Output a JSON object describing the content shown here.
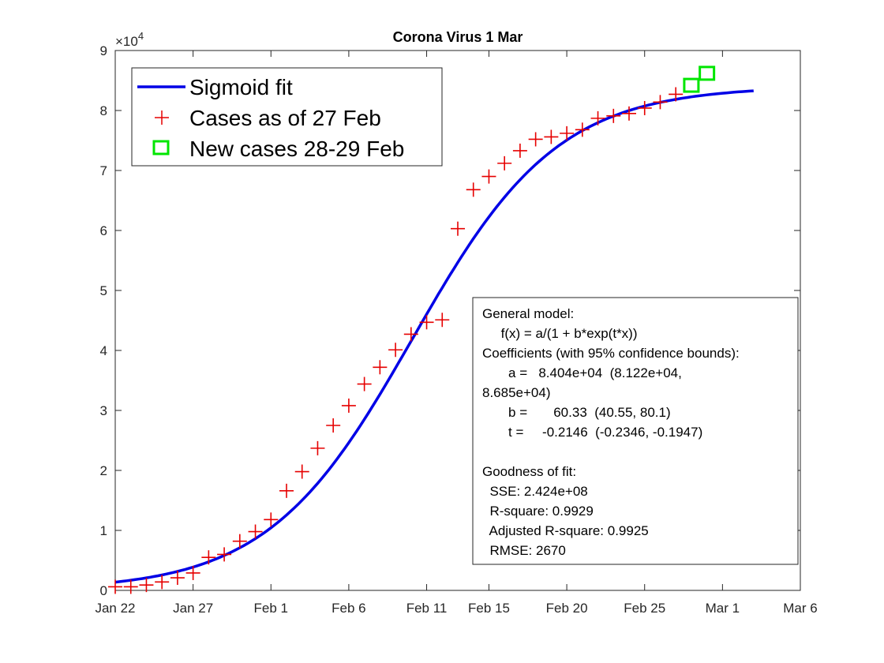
{
  "chart_data": {
    "type": "line",
    "title": "Corona Virus 1 Mar",
    "xlabel": "",
    "ylabel": "",
    "y_exponent_label": "×10",
    "y_exponent_power": "4",
    "xlim": [
      0,
      44
    ],
    "ylim": [
      0,
      9
    ],
    "x_ticks": [
      {
        "x": 0,
        "label": "Jan 22"
      },
      {
        "x": 5,
        "label": "Jan 27"
      },
      {
        "x": 10,
        "label": "Feb 1"
      },
      {
        "x": 15,
        "label": "Feb 6"
      },
      {
        "x": 20,
        "label": "Feb 11"
      },
      {
        "x": 24,
        "label": "Feb 15"
      },
      {
        "x": 29,
        "label": "Feb 20"
      },
      {
        "x": 34,
        "label": "Feb 25"
      },
      {
        "x": 39,
        "label": "Mar 1"
      },
      {
        "x": 44,
        "label": "Mar 6"
      }
    ],
    "y_ticks": [
      "0",
      "1",
      "2",
      "3",
      "4",
      "5",
      "6",
      "7",
      "8",
      "9"
    ],
    "fit": {
      "a": 8.404,
      "b": 60.33,
      "t": -0.2146,
      "x_start": 0,
      "x_end": 41
    },
    "series": [
      {
        "name": "Sigmoid fit",
        "kind": "line",
        "color": "#0000e6"
      },
      {
        "name": "Cases as of 27 Feb",
        "kind": "marker-plus",
        "color": "#e60000",
        "x": [
          0,
          1,
          2,
          3,
          4,
          5,
          6,
          7,
          8,
          9,
          10,
          11,
          12,
          13,
          14,
          15,
          16,
          17,
          18,
          19,
          20,
          21,
          22,
          23,
          24,
          25,
          26,
          27,
          28,
          29,
          30,
          31,
          32,
          33,
          34,
          35,
          36
        ],
        "y": [
          0.06,
          0.06,
          0.09,
          0.14,
          0.21,
          0.29,
          0.55,
          0.6,
          0.82,
          0.98,
          1.18,
          1.66,
          1.98,
          2.37,
          2.75,
          3.08,
          3.44,
          3.72,
          4.01,
          4.27,
          4.47,
          4.51,
          6.03,
          6.68,
          6.9,
          7.12,
          7.33,
          7.52,
          7.56,
          7.62,
          7.68,
          7.87,
          7.91,
          7.95,
          8.04,
          8.14,
          8.27
        ]
      },
      {
        "name": "New cases 28-29 Feb",
        "kind": "marker-square",
        "color": "#00e600",
        "x": [
          37,
          38
        ],
        "y": [
          8.42,
          8.62
        ]
      }
    ],
    "legend_position": "top-left",
    "grid": false,
    "fit_box": {
      "lines": [
        "General model:",
        "     f(x) = a/(1 + b*exp(t*x))",
        "Coefficients (with 95% confidence bounds):",
        "       a =   8.404e+04  (8.122e+04,",
        "8.685e+04)",
        "       b =       60.33  (40.55, 80.1)",
        "       t =     -0.2146  (-0.2346, -0.1947)",
        "",
        "Goodness of fit:",
        "  SSE: 2.424e+08",
        "  R-square: 0.9929",
        "  Adjusted R-square: 0.9925",
        "  RMSE: 2670"
      ]
    }
  }
}
